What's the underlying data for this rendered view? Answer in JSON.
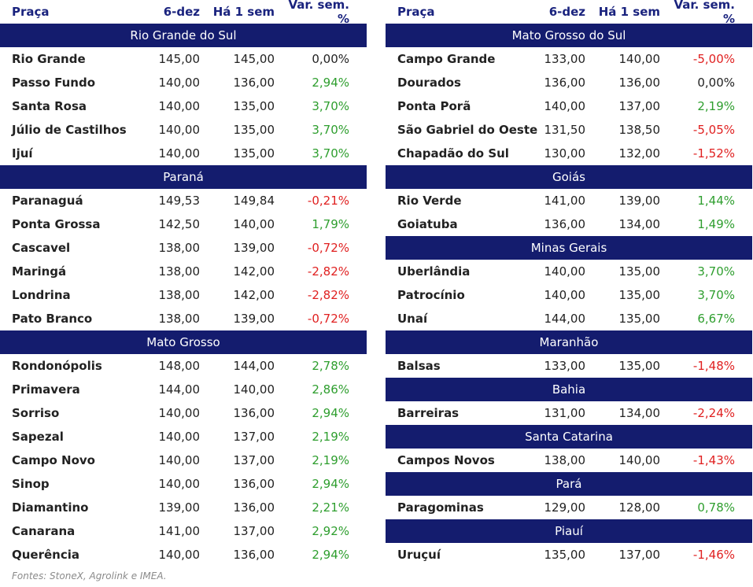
{
  "header": {
    "place": "Praça",
    "date": "6-dez",
    "week": "Há 1 sem",
    "var": "Var. sem. %"
  },
  "left": [
    {
      "region": "Rio Grande do Sul",
      "rows": [
        {
          "name": "Rio Grande",
          "d": "145,00",
          "w": "145,00",
          "p": "0,00%",
          "s": "zero"
        },
        {
          "name": "Passo Fundo",
          "d": "140,00",
          "w": "136,00",
          "p": "2,94%",
          "s": "pos"
        },
        {
          "name": "Santa Rosa",
          "d": "140,00",
          "w": "135,00",
          "p": "3,70%",
          "s": "pos"
        },
        {
          "name": "Júlio de Castilhos",
          "d": "140,00",
          "w": "135,00",
          "p": "3,70%",
          "s": "pos"
        },
        {
          "name": "Ijuí",
          "d": "140,00",
          "w": "135,00",
          "p": "3,70%",
          "s": "pos"
        }
      ]
    },
    {
      "region": "Paraná",
      "rows": [
        {
          "name": "Paranaguá",
          "d": "149,53",
          "w": "149,84",
          "p": "-0,21%",
          "s": "neg"
        },
        {
          "name": "Ponta Grossa",
          "d": "142,50",
          "w": "140,00",
          "p": "1,79%",
          "s": "pos"
        },
        {
          "name": "Cascavel",
          "d": "138,00",
          "w": "139,00",
          "p": "-0,72%",
          "s": "neg"
        },
        {
          "name": "Maringá",
          "d": "138,00",
          "w": "142,00",
          "p": "-2,82%",
          "s": "neg"
        },
        {
          "name": "Londrina",
          "d": "138,00",
          "w": "142,00",
          "p": "-2,82%",
          "s": "neg"
        },
        {
          "name": "Pato Branco",
          "d": "138,00",
          "w": "139,00",
          "p": "-0,72%",
          "s": "neg"
        }
      ]
    },
    {
      "region": "Mato Grosso",
      "rows": [
        {
          "name": "Rondonópolis",
          "d": "148,00",
          "w": "144,00",
          "p": "2,78%",
          "s": "pos"
        },
        {
          "name": "Primavera",
          "d": "144,00",
          "w": "140,00",
          "p": "2,86%",
          "s": "pos"
        },
        {
          "name": "Sorriso",
          "d": "140,00",
          "w": "136,00",
          "p": "2,94%",
          "s": "pos"
        },
        {
          "name": "Sapezal",
          "d": "140,00",
          "w": "137,00",
          "p": "2,19%",
          "s": "pos"
        },
        {
          "name": "Campo Novo",
          "d": "140,00",
          "w": "137,00",
          "p": "2,19%",
          "s": "pos"
        },
        {
          "name": "Sinop",
          "d": "140,00",
          "w": "136,00",
          "p": "2,94%",
          "s": "pos"
        },
        {
          "name": "Diamantino",
          "d": "139,00",
          "w": "136,00",
          "p": "2,21%",
          "s": "pos"
        },
        {
          "name": "Canarana",
          "d": "141,00",
          "w": "137,00",
          "p": "2,92%",
          "s": "pos"
        },
        {
          "name": "Querência",
          "d": "140,00",
          "w": "136,00",
          "p": "2,94%",
          "s": "pos"
        }
      ]
    }
  ],
  "right": [
    {
      "region": "Mato Grosso do Sul",
      "rows": [
        {
          "name": "Campo Grande",
          "d": "133,00",
          "w": "140,00",
          "p": "-5,00%",
          "s": "neg"
        },
        {
          "name": "Dourados",
          "d": "136,00",
          "w": "136,00",
          "p": "0,00%",
          "s": "zero"
        },
        {
          "name": "Ponta Porã",
          "d": "140,00",
          "w": "137,00",
          "p": "2,19%",
          "s": "pos"
        },
        {
          "name": "São Gabriel do Oeste",
          "d": "131,50",
          "w": "138,50",
          "p": "-5,05%",
          "s": "neg"
        },
        {
          "name": "Chapadão do Sul",
          "d": "130,00",
          "w": "132,00",
          "p": "-1,52%",
          "s": "neg"
        }
      ]
    },
    {
      "region": "Goiás",
      "rows": [
        {
          "name": "Rio Verde",
          "d": "141,00",
          "w": "139,00",
          "p": "1,44%",
          "s": "pos"
        },
        {
          "name": "Goiatuba",
          "d": "136,00",
          "w": "134,00",
          "p": "1,49%",
          "s": "pos"
        }
      ]
    },
    {
      "region": "Minas Gerais",
      "rows": [
        {
          "name": "Uberlândia",
          "d": "140,00",
          "w": "135,00",
          "p": "3,70%",
          "s": "pos"
        },
        {
          "name": "Patrocínio",
          "d": "140,00",
          "w": "135,00",
          "p": "3,70%",
          "s": "pos"
        },
        {
          "name": "Unaí",
          "d": "144,00",
          "w": "135,00",
          "p": "6,67%",
          "s": "pos"
        }
      ]
    },
    {
      "region": "Maranhão",
      "rows": [
        {
          "name": "Balsas",
          "d": "133,00",
          "w": "135,00",
          "p": "-1,48%",
          "s": "neg"
        }
      ]
    },
    {
      "region": "Bahia",
      "rows": [
        {
          "name": "Barreiras",
          "d": "131,00",
          "w": "134,00",
          "p": "-2,24%",
          "s": "neg"
        }
      ]
    },
    {
      "region": "Santa Catarina",
      "rows": [
        {
          "name": "Campos Novos",
          "d": "138,00",
          "w": "140,00",
          "p": "-1,43%",
          "s": "neg"
        }
      ]
    },
    {
      "region": "Pará",
      "rows": [
        {
          "name": "Paragominas",
          "d": "129,00",
          "w": "128,00",
          "p": "0,78%",
          "s": "pos"
        }
      ]
    },
    {
      "region": "Piauí",
      "rows": [
        {
          "name": "Uruçuí",
          "d": "135,00",
          "w": "137,00",
          "p": "-1,46%",
          "s": "neg"
        }
      ]
    }
  ],
  "footer": "Fontes: StoneX, Agrolink e IMEA.",
  "colors": {
    "header_band": "#141c6e",
    "positive": "#2e9e2e",
    "negative": "#e02020"
  }
}
